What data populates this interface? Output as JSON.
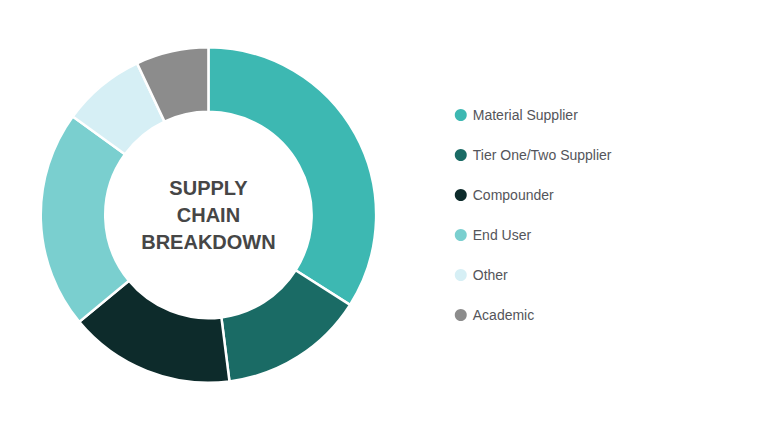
{
  "chart_data": {
    "type": "pie",
    "title": "SUPPLY\nCHAIN\nBREAKDOWN",
    "categories": [
      "Material Supplier",
      "Tier One/Two Supplier",
      "Compounder",
      "End User",
      "Other",
      "Academic"
    ],
    "values": [
      34,
      14,
      16,
      21,
      8,
      7
    ],
    "colors": [
      "#3db8b2",
      "#1a6b65",
      "#0d2b2b",
      "#7acfcf",
      "#d6eff5",
      "#8c8c8c"
    ],
    "legend": "right"
  }
}
